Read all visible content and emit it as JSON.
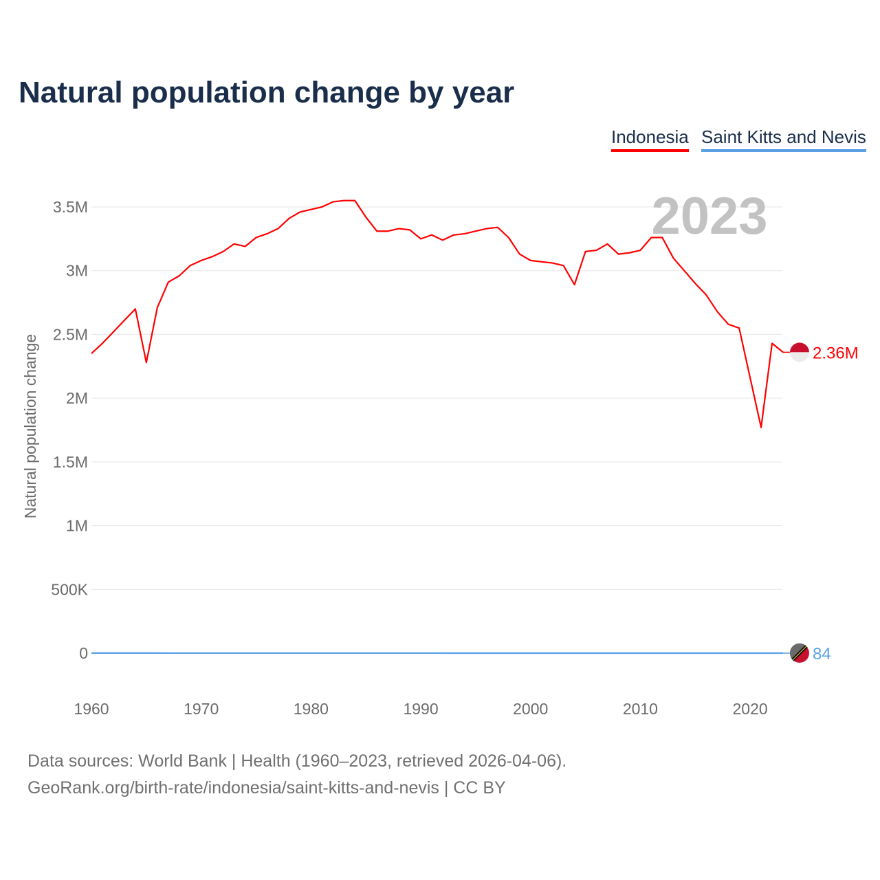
{
  "title": "Natural population change by year",
  "year_label": "2023",
  "source_line1": "Data sources: World Bank | Health (1960–2023, retrieved 2026-04-06).",
  "source_line2": "GeoRank.org/birth-rate/indonesia/saint-kitts-and-nevis | CC BY",
  "chart_data": {
    "type": "line",
    "title": "Natural population change by year",
    "xlabel": "",
    "ylabel": "Natural population change",
    "xlim": [
      1960,
      2023
    ],
    "ylim": [
      0,
      3500000
    ],
    "x_ticks": [
      1960,
      1970,
      1980,
      1990,
      2000,
      2010,
      2020
    ],
    "x_tick_labels": [
      "1960",
      "1970",
      "1980",
      "1990",
      "2000",
      "2010",
      "2020"
    ],
    "y_ticks": [
      0,
      500000,
      1000000,
      1500000,
      2000000,
      2500000,
      3000000,
      3500000
    ],
    "y_tick_labels": [
      "0",
      "500K",
      "1M",
      "1.5M",
      "2M",
      "2.5M",
      "3M",
      "3.5M"
    ],
    "grid": true,
    "legend_position": "top-right",
    "x": [
      1960,
      1961,
      1962,
      1963,
      1964,
      1965,
      1966,
      1967,
      1968,
      1969,
      1970,
      1971,
      1972,
      1973,
      1974,
      1975,
      1976,
      1977,
      1978,
      1979,
      1980,
      1981,
      1982,
      1983,
      1984,
      1985,
      1986,
      1987,
      1988,
      1989,
      1990,
      1991,
      1992,
      1993,
      1994,
      1995,
      1996,
      1997,
      1998,
      1999,
      2000,
      2001,
      2002,
      2003,
      2004,
      2005,
      2006,
      2007,
      2008,
      2009,
      2010,
      2011,
      2012,
      2013,
      2014,
      2015,
      2016,
      2017,
      2018,
      2019,
      2020,
      2021,
      2022,
      2023
    ],
    "series": [
      {
        "name": "Indonesia",
        "color": "#ff0000",
        "end_label": "2.36M",
        "values": [
          2350000,
          2430000,
          2520000,
          2610000,
          2700000,
          2280000,
          2710000,
          2910000,
          2960000,
          3040000,
          3080000,
          3110000,
          3150000,
          3210000,
          3190000,
          3260000,
          3290000,
          3330000,
          3410000,
          3460000,
          3480000,
          3500000,
          3540000,
          3550000,
          3550000,
          3420000,
          3310000,
          3310000,
          3330000,
          3320000,
          3250000,
          3280000,
          3240000,
          3280000,
          3290000,
          3310000,
          3330000,
          3340000,
          3260000,
          3130000,
          3080000,
          3070000,
          3060000,
          3040000,
          2890000,
          3150000,
          3160000,
          3210000,
          3130000,
          3140000,
          3160000,
          3260000,
          3260000,
          3100000,
          3000000,
          2900000,
          2810000,
          2680000,
          2580000,
          2550000,
          2160000,
          1770000,
          2430000,
          2360000
        ]
      },
      {
        "name": "Saint Kitts and Nevis",
        "color": "#5aa0e6",
        "end_label": "84",
        "values": [
          600,
          580,
          560,
          540,
          520,
          500,
          480,
          460,
          440,
          420,
          400,
          380,
          360,
          340,
          330,
          320,
          310,
          300,
          290,
          280,
          270,
          260,
          250,
          250,
          240,
          240,
          230,
          230,
          220,
          220,
          210,
          210,
          200,
          200,
          200,
          190,
          190,
          190,
          180,
          180,
          180,
          170,
          170,
          170,
          160,
          160,
          160,
          150,
          150,
          150,
          140,
          140,
          140,
          130,
          130,
          120,
          120,
          110,
          110,
          100,
          100,
          90,
          90,
          84
        ]
      }
    ]
  }
}
